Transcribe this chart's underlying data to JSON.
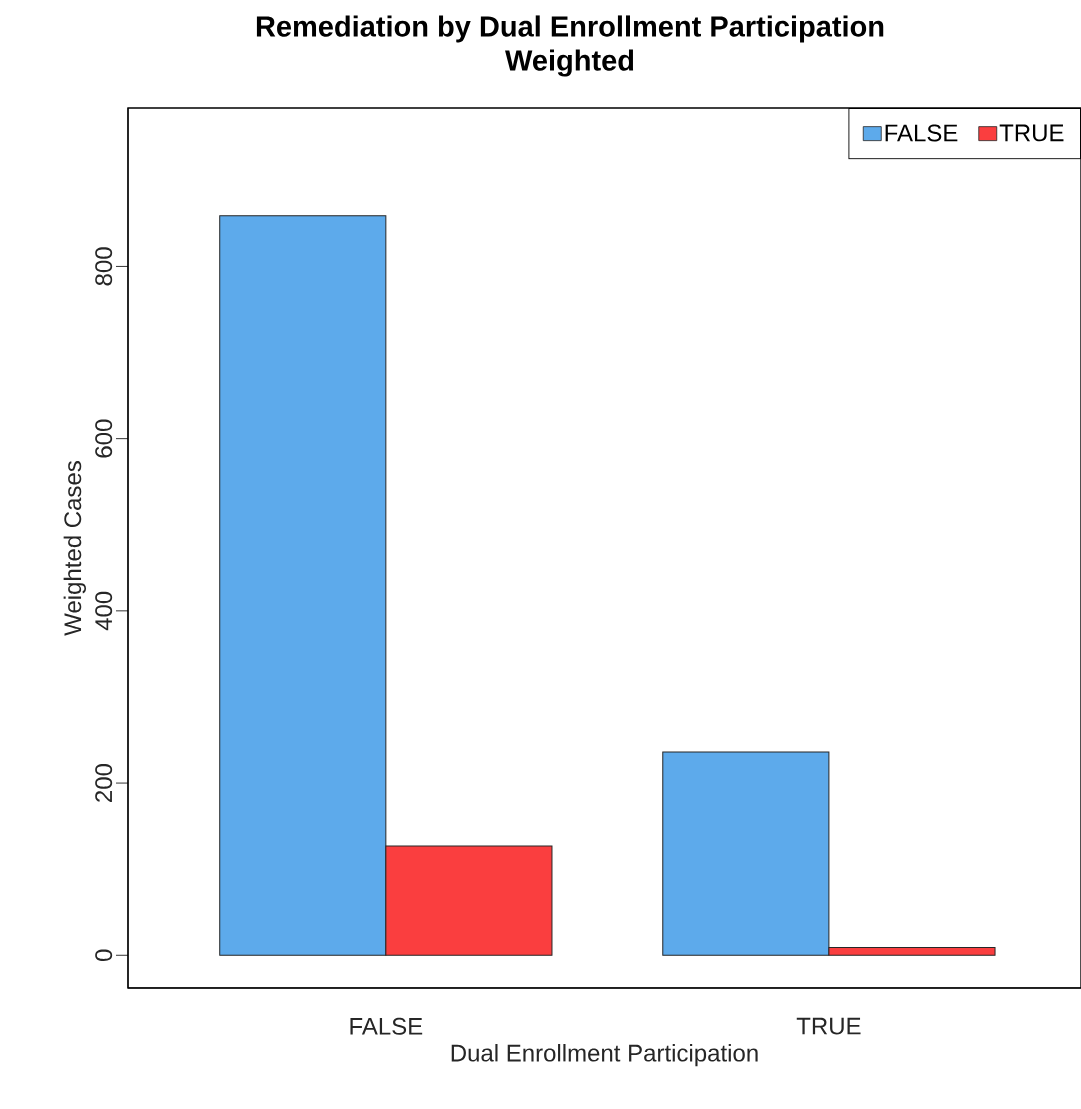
{
  "chart_data": {
    "type": "bar",
    "title": "Remediation by Dual Enrollment Participation",
    "subtitle": "Weighted",
    "xlabel": "Dual Enrollment Participation",
    "ylabel": "Weighted Cases",
    "categories": [
      "FALSE",
      "TRUE"
    ],
    "series": [
      {
        "name": "FALSE",
        "color": "#5daaeb",
        "values": [
          859,
          236
        ]
      },
      {
        "name": "TRUE",
        "color": "#fa3e3f",
        "values": [
          127,
          9
        ]
      }
    ],
    "ylim": [
      -38,
      984
    ],
    "yticks": [
      0,
      200,
      400,
      600,
      800
    ],
    "grid": false,
    "legend": "top right"
  }
}
